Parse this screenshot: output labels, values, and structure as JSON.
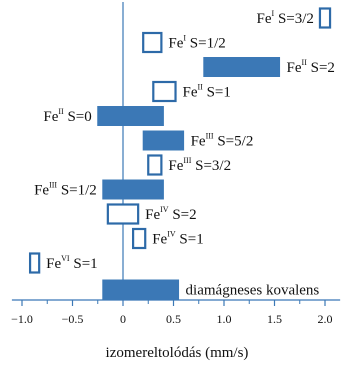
{
  "chart_data": {
    "type": "bar",
    "orientation": "horizontal-range",
    "xlabel": "izomereltolódás (mm/s)",
    "xlim": [
      -1.1,
      2.15
    ],
    "xticks": [
      "−1.0",
      "−0.5",
      "0",
      "0.5",
      "1.0",
      "1.5",
      "2.0"
    ],
    "xtick_values": [
      -1.0,
      -0.5,
      0,
      0.5,
      1.0,
      1.5,
      2.0
    ],
    "grid": false,
    "colors": {
      "filled": "#3b78b6",
      "outline": "#2d6aa8",
      "axis": "#3b78b6"
    },
    "rows": [
      {
        "ox": "I",
        "spin": "S=3/2",
        "min": 1.95,
        "max": 2.05,
        "filled": false,
        "label_side": "left"
      },
      {
        "ox": "I",
        "spin": "S=1/2",
        "min": 0.2,
        "max": 0.38,
        "filled": false,
        "label_side": "right"
      },
      {
        "ox": "II",
        "spin": "S=2",
        "min": 0.8,
        "max": 1.55,
        "filled": true,
        "label_side": "right"
      },
      {
        "ox": "II",
        "spin": "S=1",
        "min": 0.3,
        "max": 0.52,
        "filled": false,
        "label_side": "right"
      },
      {
        "ox": "II",
        "spin": "S=0",
        "min": -0.25,
        "max": 0.4,
        "filled": true,
        "label_side": "left"
      },
      {
        "ox": "III",
        "spin": "S=5/2",
        "min": 0.2,
        "max": 0.6,
        "filled": true,
        "label_side": "right"
      },
      {
        "ox": "III",
        "spin": "S=3/2",
        "min": 0.25,
        "max": 0.38,
        "filled": false,
        "label_side": "right"
      },
      {
        "ox": "III",
        "spin": "S=1/2",
        "min": -0.2,
        "max": 0.4,
        "filled": true,
        "label_side": "left"
      },
      {
        "ox": "IV",
        "spin": "S=2",
        "min": -0.15,
        "max": 0.15,
        "filled": false,
        "label_side": "right"
      },
      {
        "ox": "IV",
        "spin": "S=1",
        "min": 0.1,
        "max": 0.22,
        "filled": false,
        "label_side": "right"
      },
      {
        "ox": "VI",
        "spin": "S=1",
        "min": -0.92,
        "max": -0.83,
        "filled": false,
        "label_side": "right"
      },
      {
        "ox": "",
        "spin": "diamágneses kovalens",
        "min": -0.2,
        "max": 0.55,
        "filled": true,
        "label_side": "right"
      }
    ]
  }
}
